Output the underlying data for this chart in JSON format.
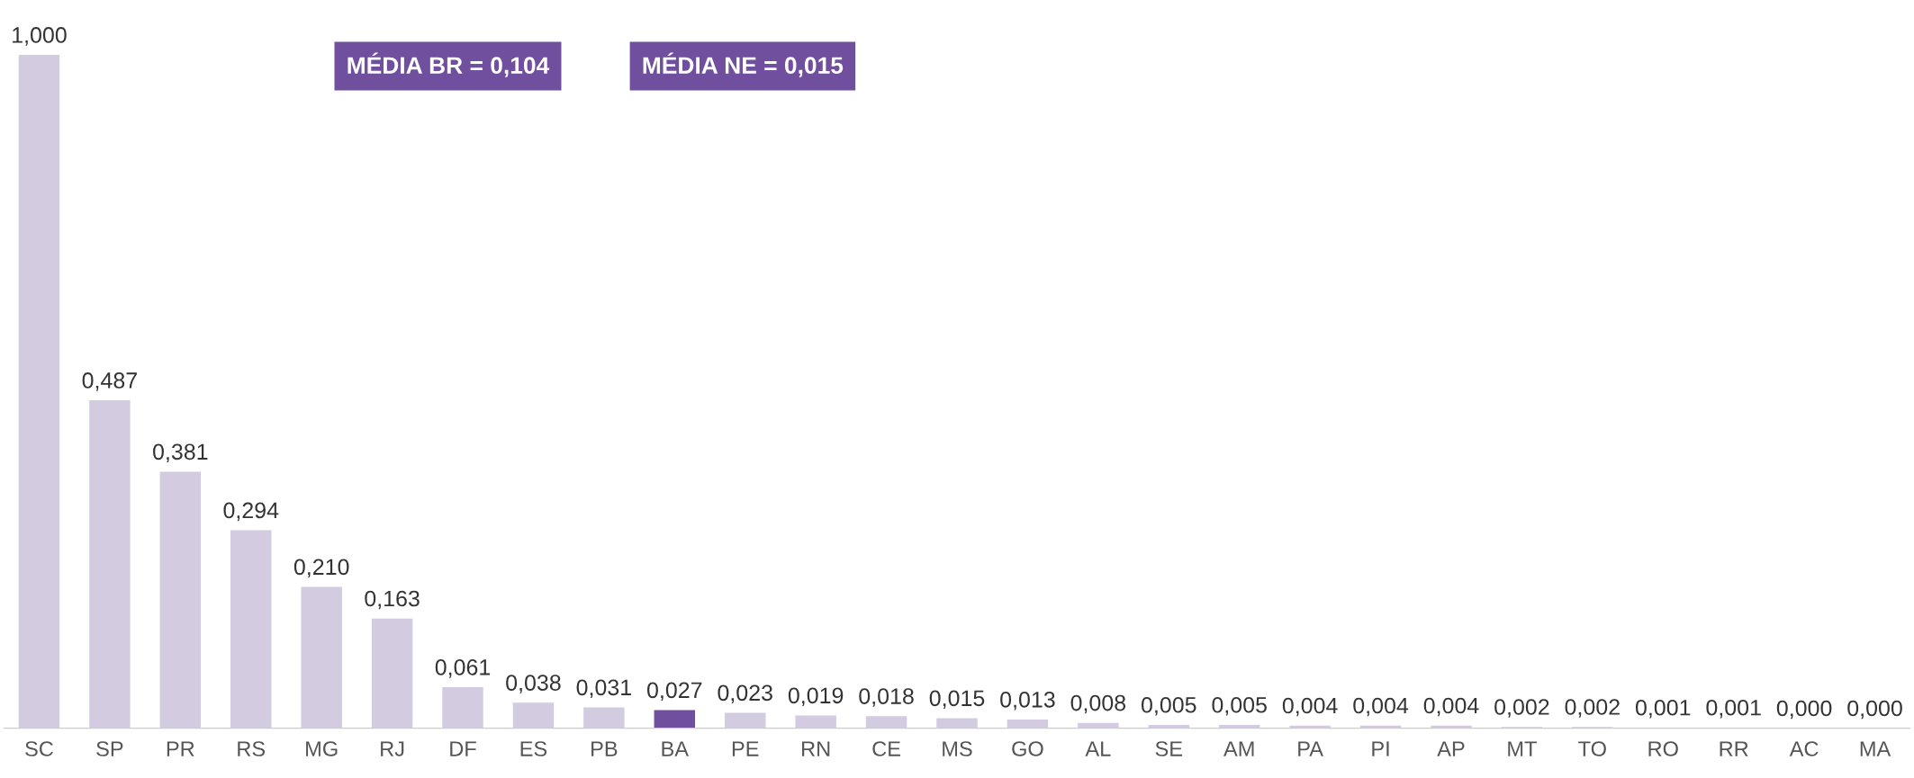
{
  "chart_data": {
    "type": "bar",
    "categories": [
      "SC",
      "SP",
      "PR",
      "RS",
      "MG",
      "RJ",
      "DF",
      "ES",
      "PB",
      "BA",
      "PE",
      "RN",
      "CE",
      "MS",
      "GO",
      "AL",
      "SE",
      "AM",
      "PA",
      "PI",
      "AP",
      "MT",
      "TO",
      "RO",
      "RR",
      "AC",
      "MA"
    ],
    "values": [
      1.0,
      0.487,
      0.381,
      0.294,
      0.21,
      0.163,
      0.061,
      0.038,
      0.031,
      0.027,
      0.023,
      0.019,
      0.018,
      0.015,
      0.013,
      0.008,
      0.005,
      0.005,
      0.004,
      0.004,
      0.004,
      0.002,
      0.002,
      0.001,
      0.001,
      0.0,
      0.0
    ],
    "colors": [
      "#d3cce0",
      "#d3cce0",
      "#d3cce0",
      "#d3cce0",
      "#d3cce0",
      "#d3cce0",
      "#d3cce0",
      "#d3cce0",
      "#d3cce0",
      "#6f4f9e",
      "#d3cce0",
      "#d3cce0",
      "#d3cce0",
      "#d3cce0",
      "#d3cce0",
      "#d3cce0",
      "#d3cce0",
      "#d3cce0",
      "#d3cce0",
      "#d3cce0",
      "#d3cce0",
      "#d3cce0",
      "#d3cce0",
      "#d3cce0",
      "#d3cce0",
      "#d3cce0",
      "#d3cce0"
    ],
    "value_labels": [
      "1,000",
      "0,487",
      "0,381",
      "0,294",
      "0,210",
      "0,163",
      "0,061",
      "0,038",
      "0,031",
      "0,027",
      "0,023",
      "0,019",
      "0,018",
      "0,015",
      "0,013",
      "0,008",
      "0,005",
      "0,005",
      "0,004",
      "0,004",
      "0,004",
      "0,002",
      "0,002",
      "0,001",
      "0,001",
      "0,000",
      "0,000"
    ],
    "annotations": [
      "MÉDIA BR = 0,104",
      "MÉDIA NE = 0,015"
    ],
    "grid": false,
    "legend": false
  }
}
